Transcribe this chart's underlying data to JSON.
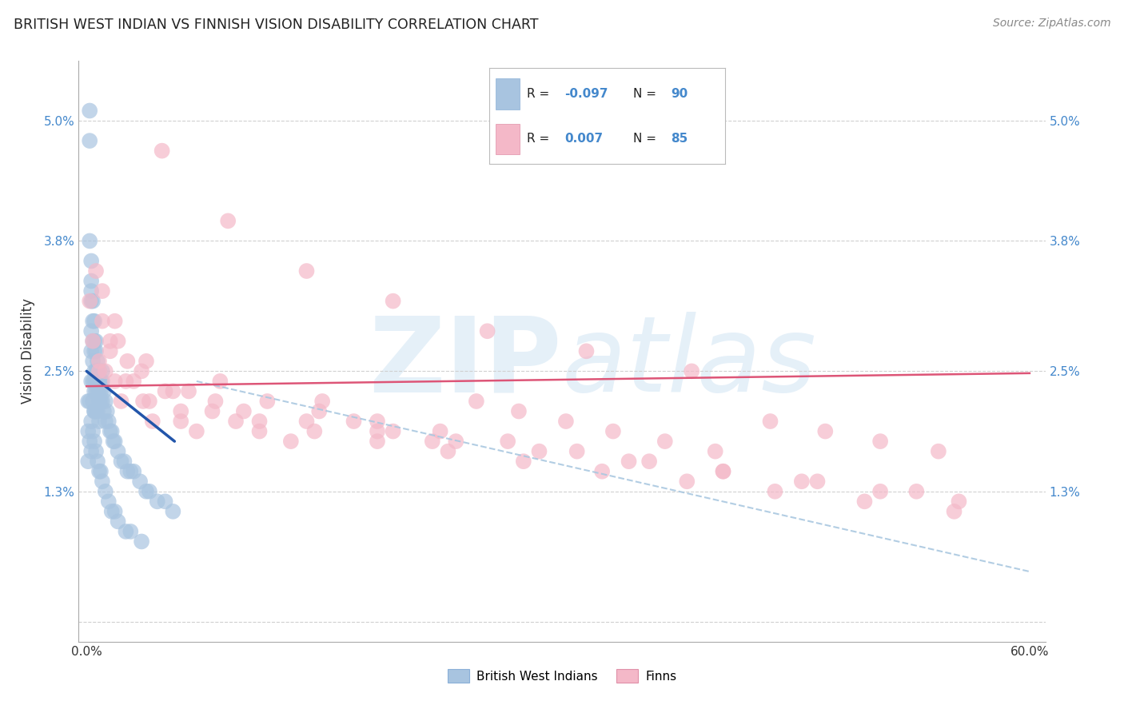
{
  "title": "BRITISH WEST INDIAN VS FINNISH VISION DISABILITY CORRELATION CHART",
  "source": "Source: ZipAtlas.com",
  "ylabel": "Vision Disability",
  "xlim": [
    -0.005,
    0.61
  ],
  "ylim": [
    -0.002,
    0.056
  ],
  "ytick_vals": [
    0.0,
    0.013,
    0.025,
    0.038,
    0.05
  ],
  "ytick_labels": [
    "",
    "1.3%",
    "2.5%",
    "3.8%",
    "5.0%"
  ],
  "xtick_vals": [
    0.0,
    0.1,
    0.2,
    0.3,
    0.4,
    0.5,
    0.6
  ],
  "xtick_labels": [
    "0.0%",
    "",
    "",
    "",
    "",
    "",
    "60.0%"
  ],
  "color_bwi": "#a8c4e0",
  "color_finn": "#f4b8c8",
  "trendline_bwi_color": "#2255aa",
  "trendline_finn_color": "#dd5577",
  "trendline_dashed_color": "#aac8e0",
  "watermark_color": "#d0e4f4",
  "background_color": "#ffffff",
  "grid_color": "#d0d0d0",
  "tick_color": "#4488cc",
  "legend_r_bwi": "-0.097",
  "legend_n_bwi": "90",
  "legend_r_finn": "0.007",
  "legend_n_finn": "85",
  "bwi_x": [
    0.001,
    0.001,
    0.002,
    0.002,
    0.002,
    0.002,
    0.003,
    0.003,
    0.003,
    0.003,
    0.003,
    0.003,
    0.003,
    0.004,
    0.004,
    0.004,
    0.004,
    0.004,
    0.004,
    0.005,
    0.005,
    0.005,
    0.005,
    0.005,
    0.005,
    0.005,
    0.006,
    0.006,
    0.006,
    0.006,
    0.006,
    0.006,
    0.007,
    0.007,
    0.007,
    0.007,
    0.007,
    0.008,
    0.008,
    0.008,
    0.008,
    0.008,
    0.009,
    0.009,
    0.009,
    0.01,
    0.01,
    0.01,
    0.011,
    0.011,
    0.012,
    0.012,
    0.013,
    0.014,
    0.015,
    0.016,
    0.017,
    0.018,
    0.02,
    0.022,
    0.024,
    0.026,
    0.028,
    0.03,
    0.034,
    0.038,
    0.04,
    0.045,
    0.05,
    0.055,
    0.001,
    0.002,
    0.003,
    0.003,
    0.004,
    0.005,
    0.005,
    0.006,
    0.007,
    0.008,
    0.009,
    0.01,
    0.012,
    0.014,
    0.016,
    0.018,
    0.02,
    0.025,
    0.028,
    0.035
  ],
  "bwi_y": [
    0.022,
    0.019,
    0.051,
    0.048,
    0.038,
    0.022,
    0.036,
    0.034,
    0.033,
    0.032,
    0.029,
    0.027,
    0.024,
    0.032,
    0.03,
    0.028,
    0.026,
    0.024,
    0.022,
    0.03,
    0.028,
    0.027,
    0.025,
    0.024,
    0.023,
    0.021,
    0.028,
    0.027,
    0.025,
    0.024,
    0.023,
    0.021,
    0.026,
    0.025,
    0.024,
    0.023,
    0.021,
    0.025,
    0.024,
    0.023,
    0.022,
    0.02,
    0.024,
    0.023,
    0.022,
    0.025,
    0.024,
    0.022,
    0.023,
    0.021,
    0.022,
    0.02,
    0.021,
    0.02,
    0.019,
    0.019,
    0.018,
    0.018,
    0.017,
    0.016,
    0.016,
    0.015,
    0.015,
    0.015,
    0.014,
    0.013,
    0.013,
    0.012,
    0.012,
    0.011,
    0.016,
    0.018,
    0.02,
    0.017,
    0.019,
    0.021,
    0.018,
    0.017,
    0.016,
    0.015,
    0.015,
    0.014,
    0.013,
    0.012,
    0.011,
    0.011,
    0.01,
    0.009,
    0.009,
    0.008
  ],
  "finn_x": [
    0.002,
    0.004,
    0.006,
    0.008,
    0.01,
    0.012,
    0.015,
    0.018,
    0.022,
    0.026,
    0.03,
    0.036,
    0.042,
    0.05,
    0.06,
    0.07,
    0.082,
    0.095,
    0.11,
    0.13,
    0.15,
    0.17,
    0.195,
    0.22,
    0.248,
    0.275,
    0.305,
    0.335,
    0.368,
    0.4,
    0.435,
    0.47,
    0.505,
    0.542,
    0.008,
    0.015,
    0.025,
    0.04,
    0.06,
    0.085,
    0.115,
    0.148,
    0.185,
    0.225,
    0.268,
    0.312,
    0.358,
    0.405,
    0.455,
    0.505,
    0.555,
    0.01,
    0.02,
    0.035,
    0.055,
    0.08,
    0.11,
    0.145,
    0.185,
    0.23,
    0.278,
    0.328,
    0.382,
    0.438,
    0.495,
    0.552,
    0.018,
    0.038,
    0.065,
    0.1,
    0.14,
    0.185,
    0.235,
    0.288,
    0.345,
    0.405,
    0.465,
    0.528,
    0.048,
    0.09,
    0.14,
    0.195,
    0.255,
    0.318,
    0.385
  ],
  "finn_y": [
    0.032,
    0.028,
    0.035,
    0.026,
    0.03,
    0.025,
    0.028,
    0.024,
    0.022,
    0.026,
    0.024,
    0.022,
    0.02,
    0.023,
    0.021,
    0.019,
    0.022,
    0.02,
    0.019,
    0.018,
    0.022,
    0.02,
    0.019,
    0.018,
    0.022,
    0.021,
    0.02,
    0.019,
    0.018,
    0.017,
    0.02,
    0.019,
    0.018,
    0.017,
    0.025,
    0.027,
    0.024,
    0.022,
    0.02,
    0.024,
    0.022,
    0.021,
    0.02,
    0.019,
    0.018,
    0.017,
    0.016,
    0.015,
    0.014,
    0.013,
    0.012,
    0.033,
    0.028,
    0.025,
    0.023,
    0.021,
    0.02,
    0.019,
    0.018,
    0.017,
    0.016,
    0.015,
    0.014,
    0.013,
    0.012,
    0.011,
    0.03,
    0.026,
    0.023,
    0.021,
    0.02,
    0.019,
    0.018,
    0.017,
    0.016,
    0.015,
    0.014,
    0.013,
    0.047,
    0.04,
    0.035,
    0.032,
    0.029,
    0.027,
    0.025
  ]
}
